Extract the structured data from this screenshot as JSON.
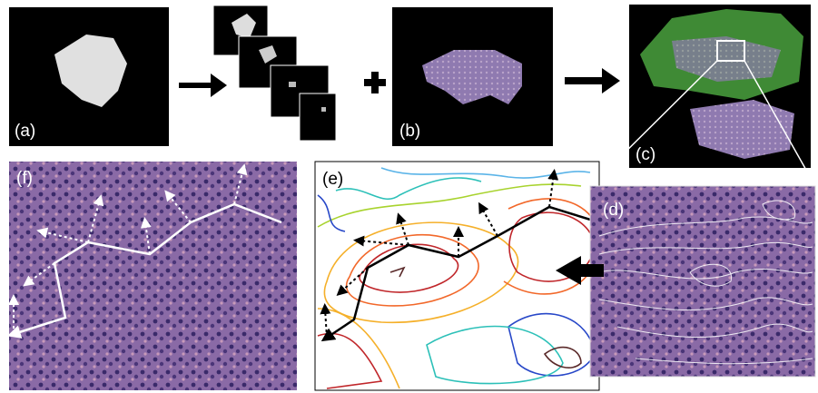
{
  "panels": {
    "a": "(a)",
    "b": "(b)",
    "c": "(c)",
    "d": "(d)",
    "e": "(e)",
    "f": "(f)"
  }
}
